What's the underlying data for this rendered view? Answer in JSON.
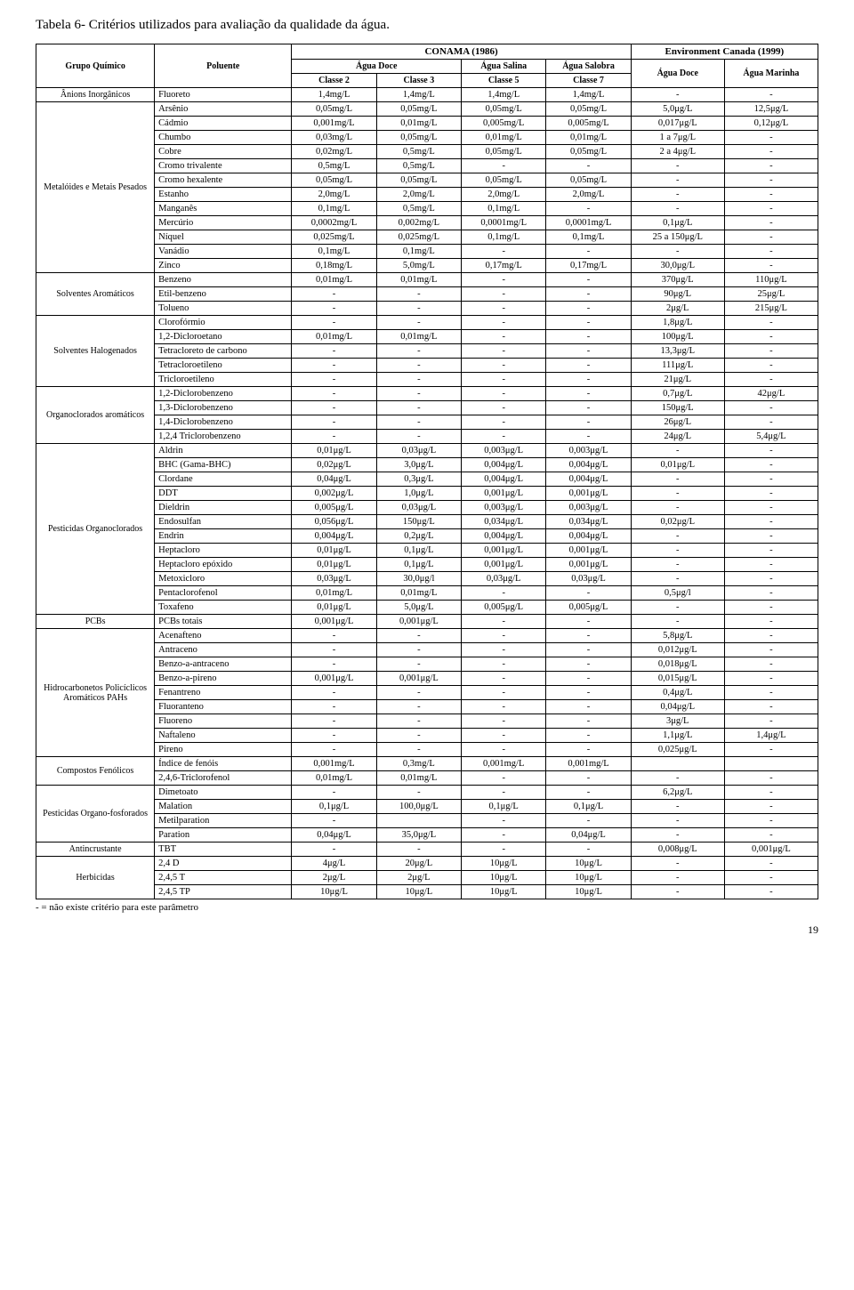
{
  "title": "Tabela 6- Critérios utilizados para avaliação da qualidade da água.",
  "note": "- = não existe critério para este parâmetro",
  "pagenum": "19",
  "hdr": {
    "gc": "Grupo Químico",
    "pol": "Poluente",
    "con": "CONAMA (1986)",
    "env": "Environment Canada (1999)",
    "ad": "Água Doce",
    "as": "Água Salina",
    "asl": "Água Salobra",
    "am": "Água Marinha",
    "c2": "Classe 2",
    "c3": "Classe 3",
    "c5": "Classe 5",
    "c7": "Classe 7"
  },
  "groups": [
    {
      "name": "Ânions Inorgânicos",
      "rows": [
        {
          "p": "Fluoreto",
          "v": [
            "1,4mg/L",
            "1,4mg/L",
            "1,4mg/L",
            "1,4mg/L",
            "-",
            "-"
          ]
        }
      ]
    },
    {
      "name": "Metalóides e Metais Pesados",
      "rows": [
        {
          "p": "Arsênio",
          "v": [
            "0,05mg/L",
            "0,05mg/L",
            "0,05mg/L",
            "0,05mg/L",
            "5,0μg/L",
            "12,5μg/L"
          ]
        },
        {
          "p": "Cádmio",
          "v": [
            "0,001mg/L",
            "0,01mg/L",
            "0,005mg/L",
            "0,005mg/L",
            "0,017μg/L",
            "0,12μg/L"
          ]
        },
        {
          "p": "Chumbo",
          "v": [
            "0,03mg/L",
            "0,05mg/L",
            "0,01mg/L",
            "0,01mg/L",
            "1 a 7μg/L",
            "-"
          ]
        },
        {
          "p": "Cobre",
          "v": [
            "0,02mg/L",
            "0,5mg/L",
            "0,05mg/L",
            "0,05mg/L",
            "2 a 4μg/L",
            "-"
          ]
        },
        {
          "p": "Cromo trivalente",
          "v": [
            "0,5mg/L",
            "0,5mg/L",
            "-",
            "-",
            "-",
            "-"
          ]
        },
        {
          "p": "Cromo hexalente",
          "v": [
            "0,05mg/L",
            "0,05mg/L",
            "0,05mg/L",
            "0,05mg/L",
            "-",
            "-"
          ]
        },
        {
          "p": "Estanho",
          "v": [
            "2,0mg/L",
            "2,0mg/L",
            "2,0mg/L",
            "2,0mg/L",
            "-",
            "-"
          ]
        },
        {
          "p": "Manganês",
          "v": [
            "0,1mg/L",
            "0,5mg/L",
            "0,1mg/L",
            "-",
            "-",
            "-"
          ]
        },
        {
          "p": "Mercúrio",
          "v": [
            "0,0002mg/L",
            "0,002mg/L",
            "0,0001mg/L",
            "0,0001mg/L",
            "0,1μg/L",
            "-"
          ]
        },
        {
          "p": "Níquel",
          "v": [
            "0,025mg/L",
            "0,025mg/L",
            "0,1mg/L",
            "0,1mg/L",
            "25 a 150μg/L",
            "-"
          ]
        },
        {
          "p": "Vanádio",
          "v": [
            "0,1mg/L",
            "0,1mg/L",
            "-",
            "-",
            "-",
            "-"
          ]
        },
        {
          "p": "Zinco",
          "v": [
            "0,18mg/L",
            "5,0mg/L",
            "0,17mg/L",
            "0,17mg/L",
            "30,0μg/L",
            "-"
          ]
        }
      ]
    },
    {
      "name": "Solventes Aromáticos",
      "rows": [
        {
          "p": "Benzeno",
          "v": [
            "0,01mg/L",
            "0,01mg/L",
            "-",
            "-",
            "370μg/L",
            "110μg/L"
          ]
        },
        {
          "p": "Etil-benzeno",
          "v": [
            "-",
            "-",
            "-",
            "-",
            "90μg/L",
            "25μg/L"
          ]
        },
        {
          "p": "Tolueno",
          "v": [
            "-",
            "-",
            "-",
            "-",
            "2μg/L",
            "215μg/L"
          ]
        }
      ]
    },
    {
      "name": "Solventes Halogenados",
      "rows": [
        {
          "p": "Clorofórmio",
          "v": [
            "-",
            "-",
            "-",
            "-",
            "1,8μg/L",
            "-"
          ]
        },
        {
          "p": "1,2-Dicloroetano",
          "v": [
            "0,01mg/L",
            "0,01mg/L",
            "-",
            "-",
            "100μg/L",
            "-"
          ]
        },
        {
          "p": "Tetracloreto de carbono",
          "v": [
            "-",
            "-",
            "-",
            "-",
            "13,3μg/L",
            "-"
          ]
        },
        {
          "p": "Tetracloroetileno",
          "v": [
            "-",
            "-",
            "-",
            "-",
            "111μg/L",
            "-"
          ]
        },
        {
          "p": "Tricloroetileno",
          "v": [
            "-",
            "-",
            "-",
            "-",
            "21μg/L",
            "-"
          ]
        }
      ]
    },
    {
      "name": "Organoclorados aromáticos",
      "rows": [
        {
          "p": "1,2-Diclorobenzeno",
          "v": [
            "-",
            "-",
            "-",
            "-",
            "0,7μg/L",
            "42μg/L"
          ]
        },
        {
          "p": "1,3-Diclorobenzeno",
          "v": [
            "-",
            "-",
            "-",
            "-",
            "150μg/L",
            "-"
          ]
        },
        {
          "p": "1,4-Diclorobenzeno",
          "v": [
            "-",
            "-",
            "-",
            "-",
            "26μg/L",
            "-"
          ]
        },
        {
          "p": "1,2,4 Triclorobenzeno",
          "v": [
            "-",
            "-",
            "-",
            "-",
            "24μg/L",
            "5,4μg/L"
          ]
        }
      ]
    },
    {
      "name": "Pesticidas Organoclorados",
      "rows": [
        {
          "p": "Aldrin",
          "v": [
            "0,01μg/L",
            "0,03μg/L",
            "0,003μg/L",
            "0,003μg/L",
            "-",
            "-"
          ]
        },
        {
          "p": "BHC (Gama-BHC)",
          "v": [
            "0,02μg/L",
            "3,0μg/L",
            "0,004μg/L",
            "0,004μg/L",
            "0,01μg/L",
            "-"
          ]
        },
        {
          "p": "Clordane",
          "v": [
            "0,04μg/L",
            "0,3μg/L",
            "0,004μg/L",
            "0,004μg/L",
            "-",
            "-"
          ]
        },
        {
          "p": "DDT",
          "v": [
            "0,002μg/L",
            "1,0μg/L",
            "0,001μg/L",
            "0,001μg/L",
            "-",
            "-"
          ]
        },
        {
          "p": "Dieldrin",
          "v": [
            "0,005μg/L",
            "0,03μg/L",
            "0,003μg/L",
            "0,003μg/L",
            "-",
            "-"
          ]
        },
        {
          "p": "Endosulfan",
          "v": [
            "0,056μg/L",
            "150μg/L",
            "0,034μg/L",
            "0,034μg/L",
            "0,02μg/L",
            "-"
          ]
        },
        {
          "p": "Endrin",
          "v": [
            "0,004μg/L",
            "0,2μg/L",
            "0,004μg/L",
            "0,004μg/L",
            "-",
            "-"
          ]
        },
        {
          "p": "Heptacloro",
          "v": [
            "0,01μg/L",
            "0,1μg/L",
            "0,001μg/L",
            "0,001μg/L",
            "-",
            "-"
          ]
        },
        {
          "p": "Heptacloro epóxido",
          "v": [
            "0,01μg/L",
            "0,1μg/L",
            "0,001μg/L",
            "0,001μg/L",
            "-",
            "-"
          ]
        },
        {
          "p": "Metoxicloro",
          "v": [
            "0,03μg/L",
            "30,0μg/l",
            "0,03μg/L",
            "0,03μg/L",
            "-",
            "-"
          ]
        },
        {
          "p": "Pentaclorofenol",
          "v": [
            "0,01mg/L",
            "0,01mg/L",
            "-",
            "-",
            "0,5μg/l",
            "-"
          ]
        },
        {
          "p": "Toxafeno",
          "v": [
            "0,01μg/L",
            "5,0μg/L",
            "0,005μg/L",
            "0,005μg/L",
            "-",
            "-"
          ]
        }
      ]
    },
    {
      "name": "PCBs",
      "rows": [
        {
          "p": "PCBs totais",
          "v": [
            "0,001μg/L",
            "0,001μg/L",
            "-",
            "-",
            "-",
            "-"
          ]
        }
      ]
    },
    {
      "name": "Hidrocarbonetos Policíclicos Aromáticos PAHs",
      "rows": [
        {
          "p": "Acenafteno",
          "v": [
            "-",
            "-",
            "-",
            "-",
            "5,8μg/L",
            "-"
          ]
        },
        {
          "p": "Antraceno",
          "v": [
            "-",
            "-",
            "-",
            "-",
            "0,012μg/L",
            "-"
          ]
        },
        {
          "p": "Benzo-a-antraceno",
          "v": [
            "-",
            "-",
            "-",
            "-",
            "0,018μg/L",
            "-"
          ]
        },
        {
          "p": "Benzo-a-pireno",
          "v": [
            "0,001μg/L",
            "0,001μg/L",
            "-",
            "-",
            "0,015μg/L",
            "-"
          ]
        },
        {
          "p": "Fenantreno",
          "v": [
            "-",
            "-",
            "-",
            "-",
            "0,4μg/L",
            "-"
          ]
        },
        {
          "p": "Fluoranteno",
          "v": [
            "-",
            "-",
            "-",
            "-",
            "0,04μg/L",
            "-"
          ]
        },
        {
          "p": "Fluoreno",
          "v": [
            "-",
            "-",
            "-",
            "-",
            "3μg/L",
            "-"
          ]
        },
        {
          "p": "Naftaleno",
          "v": [
            "-",
            "-",
            "-",
            "-",
            "1,1μg/L",
            "1,4μg/L"
          ]
        },
        {
          "p": "Pireno",
          "v": [
            "-",
            "-",
            "-",
            "-",
            "0,025μg/L",
            "-"
          ]
        }
      ]
    },
    {
      "name": "Compostos Fenólicos",
      "rows": [
        {
          "p": "Índice de fenóis",
          "v": [
            "0,001mg/L",
            "0,3mg/L",
            "0,001mg/L",
            "0,001mg/L",
            "",
            ""
          ]
        },
        {
          "p": "2,4,6-Triclorofenol",
          "v": [
            "0,01mg/L",
            "0,01mg/L",
            "-",
            "-",
            "-",
            "-"
          ]
        }
      ]
    },
    {
      "name": "Pesticidas Organo-fosforados",
      "rows": [
        {
          "p": "Dimetoato",
          "v": [
            "-",
            "-",
            "-",
            "-",
            "6,2μg/L",
            "-"
          ]
        },
        {
          "p": "Malation",
          "v": [
            "0,1μg/L",
            "100,0μg/L",
            "0,1μg/L",
            "0,1μg/L",
            "-",
            "-"
          ]
        },
        {
          "p": "Metilparation",
          "v": [
            "-",
            "",
            "-",
            "-",
            "-",
            "-"
          ]
        },
        {
          "p": "Paration",
          "v": [
            "0,04μg/L",
            "35,0μg/L",
            "-",
            "0,04μg/L",
            "-",
            "-"
          ]
        }
      ]
    },
    {
      "name": "Antincrustante",
      "rows": [
        {
          "p": "TBT",
          "v": [
            "-",
            "-",
            "-",
            "-",
            "0,008μg/L",
            "0,001μg/L"
          ]
        }
      ]
    },
    {
      "name": "Herbicidas",
      "rows": [
        {
          "p": "2,4 D",
          "v": [
            "4μg/L",
            "20μg/L",
            "10μg/L",
            "10μg/L",
            "-",
            "-"
          ]
        },
        {
          "p": "2,4,5 T",
          "v": [
            "2μg/L",
            "2μg/L",
            "10μg/L",
            "10μg/L",
            "-",
            "-"
          ]
        },
        {
          "p": "2,4,5 TP",
          "v": [
            "10μg/L",
            "10μg/L",
            "10μg/L",
            "10μg/L",
            "-",
            "-"
          ]
        }
      ]
    }
  ]
}
